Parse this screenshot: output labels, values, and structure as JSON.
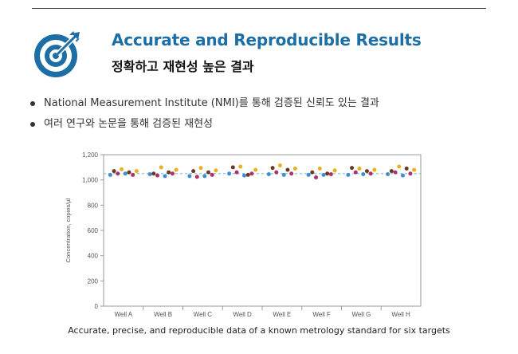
{
  "header": {
    "title": "Accurate and Reproducible Results",
    "subtitle": "정확하고 재현성 높은 결과",
    "icon": "target-arrow-icon",
    "accent_color": "#1c6ea4"
  },
  "bullets": [
    "National Measurement Institute (NMI)를 통해 검증된 신뢰도 있는 결과",
    "여러 연구와 논문을 통해 검증된 재현성"
  ],
  "caption": "Accurate, precise, and reproducible data of a known metrology standard for six targets",
  "chart_data": {
    "type": "scatter",
    "ylabel": "Concentration, copies/µl",
    "xlabel": "",
    "ylim": [
      0,
      1200
    ],
    "yticks": [
      0,
      200,
      400,
      600,
      800,
      "1,000",
      "1,200"
    ],
    "categories": [
      "Well A",
      "Well B",
      "Well C",
      "Well D",
      "Well E",
      "Well F",
      "Well G",
      "Well H"
    ],
    "reference_line": 1050,
    "reference_color": "#8cc8e8",
    "grid": false,
    "point_colors": [
      "#3f8fd0",
      "#6b3a1e",
      "#b0306a",
      "#e8b020"
    ],
    "series_points": [
      [
        [
          1040,
          1070,
          1050,
          1085
        ],
        [
          1050,
          1060,
          1040,
          1070
        ]
      ],
      [
        [
          1045,
          1050,
          1035,
          1100
        ],
        [
          1030,
          1060,
          1050,
          1080
        ]
      ],
      [
        [
          1030,
          1070,
          1025,
          1095
        ],
        [
          1030,
          1060,
          1040,
          1075
        ]
      ],
      [
        [
          1050,
          1100,
          1060,
          1105
        ],
        [
          1035,
          1040,
          1050,
          1080
        ]
      ],
      [
        [
          1045,
          1095,
          1060,
          1115
        ],
        [
          1040,
          1080,
          1050,
          1090
        ]
      ],
      [
        [
          1040,
          1060,
          1020,
          1090
        ],
        [
          1040,
          1050,
          1045,
          1075
        ]
      ],
      [
        [
          1040,
          1095,
          1060,
          1090
        ],
        [
          1045,
          1070,
          1050,
          1080
        ]
      ],
      [
        [
          1045,
          1070,
          1060,
          1105
        ],
        [
          1035,
          1090,
          1050,
          1080
        ]
      ]
    ]
  }
}
